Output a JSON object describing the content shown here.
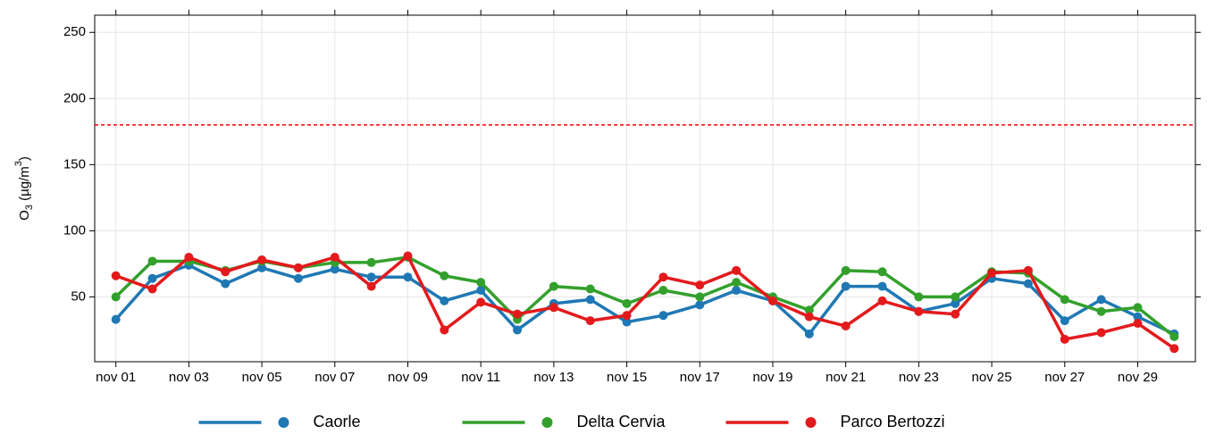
{
  "chart_data": {
    "type": "line",
    "y_label": {
      "main": "O",
      "sub": "3",
      "rest": " (µg/m",
      "sup": "3",
      "close": ")"
    },
    "categories": [
      "nov 01",
      null,
      "nov 03",
      null,
      "nov 05",
      null,
      "nov 07",
      null,
      "nov 09",
      null,
      "nov 11",
      null,
      "nov 13",
      null,
      "nov 15",
      null,
      "nov 17",
      null,
      "nov 19",
      null,
      "nov 21",
      null,
      "nov 23",
      null,
      "nov 25",
      null,
      "nov 27",
      null,
      "nov 29",
      null
    ],
    "series": [
      {
        "name": "Caorle",
        "color": "#1f78b4",
        "values": [
          33,
          64,
          74,
          60,
          72,
          64,
          71,
          65,
          65,
          47,
          55,
          25,
          45,
          48,
          31,
          36,
          44,
          55,
          47,
          22,
          58,
          58,
          39,
          45,
          64,
          60,
          32,
          48,
          35,
          22
        ]
      },
      {
        "name": "Delta Cervia",
        "color": "#33a02c",
        "values": [
          50,
          77,
          77,
          70,
          77,
          72,
          76,
          76,
          80,
          66,
          61,
          33,
          58,
          56,
          45,
          55,
          50,
          61,
          50,
          40,
          70,
          69,
          50,
          50,
          69,
          68,
          48,
          39,
          42,
          20
        ]
      },
      {
        "name": "Parco Bertozzi",
        "color": "#e31a1c",
        "values": [
          66,
          56,
          80,
          69,
          78,
          72,
          80,
          58,
          81,
          25,
          46,
          37,
          42,
          32,
          36,
          65,
          59,
          70,
          47,
          35,
          28,
          47,
          39,
          37,
          68,
          70,
          18,
          23,
          30,
          11
        ]
      }
    ],
    "threshold": 180,
    "threshold_color": "#ff0000",
    "ylim": [
      1,
      263
    ],
    "yticks": [
      50,
      100,
      150,
      200,
      250
    ],
    "grid": true,
    "legend": "bottom"
  }
}
